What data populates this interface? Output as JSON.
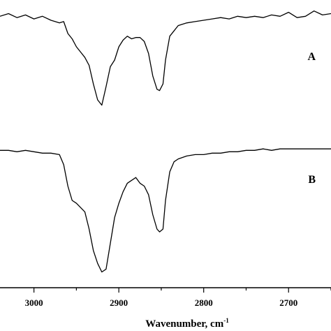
{
  "chart_data": {
    "type": "line",
    "xlabel": "Wavenumber, cm",
    "xlabel_superscript": "-1",
    "xlim": [
      3040,
      2650
    ],
    "x_reversed": true,
    "x_ticks": [
      3000,
      2900,
      2800,
      2700
    ],
    "y_axis_visible": false,
    "grid": false,
    "series": [
      {
        "name": "A",
        "x": [
          3040,
          3030,
          3020,
          3010,
          3000,
          2990,
          2980,
          2970,
          2965,
          2960,
          2955,
          2950,
          2945,
          2940,
          2935,
          2930,
          2925,
          2920,
          2915,
          2910,
          2905,
          2900,
          2895,
          2890,
          2885,
          2880,
          2875,
          2870,
          2865,
          2860,
          2855,
          2852,
          2848,
          2845,
          2840,
          2835,
          2830,
          2820,
          2810,
          2800,
          2790,
          2780,
          2770,
          2760,
          2750,
          2740,
          2730,
          2720,
          2710,
          2700,
          2690,
          2680,
          2670,
          2660,
          2650
        ],
        "values": [
          0.93,
          0.95,
          0.92,
          0.94,
          0.91,
          0.93,
          0.9,
          0.88,
          0.89,
          0.8,
          0.76,
          0.7,
          0.66,
          0.62,
          0.56,
          0.42,
          0.3,
          0.26,
          0.4,
          0.55,
          0.6,
          0.7,
          0.75,
          0.78,
          0.76,
          0.77,
          0.77,
          0.74,
          0.65,
          0.48,
          0.38,
          0.37,
          0.42,
          0.6,
          0.78,
          0.82,
          0.86,
          0.88,
          0.89,
          0.9,
          0.91,
          0.92,
          0.91,
          0.93,
          0.92,
          0.93,
          0.92,
          0.94,
          0.93,
          0.96,
          0.92,
          0.93,
          0.97,
          0.94,
          0.95
        ]
      },
      {
        "name": "B",
        "x": [
          3040,
          3030,
          3020,
          3010,
          3000,
          2990,
          2980,
          2970,
          2965,
          2960,
          2955,
          2950,
          2945,
          2940,
          2935,
          2930,
          2925,
          2920,
          2915,
          2910,
          2905,
          2900,
          2895,
          2890,
          2885,
          2880,
          2875,
          2870,
          2865,
          2860,
          2855,
          2852,
          2848,
          2845,
          2840,
          2835,
          2830,
          2820,
          2810,
          2800,
          2790,
          2780,
          2770,
          2760,
          2750,
          2740,
          2730,
          2720,
          2710,
          2700,
          2690,
          2680,
          2670,
          2660,
          2650
        ],
        "values": [
          0.95,
          0.95,
          0.94,
          0.95,
          0.94,
          0.93,
          0.93,
          0.92,
          0.85,
          0.7,
          0.6,
          0.58,
          0.55,
          0.52,
          0.4,
          0.25,
          0.16,
          0.1,
          0.12,
          0.3,
          0.48,
          0.58,
          0.66,
          0.72,
          0.74,
          0.76,
          0.72,
          0.7,
          0.64,
          0.5,
          0.4,
          0.38,
          0.4,
          0.6,
          0.8,
          0.87,
          0.89,
          0.91,
          0.92,
          0.92,
          0.93,
          0.93,
          0.94,
          0.94,
          0.95,
          0.95,
          0.96,
          0.95,
          0.96,
          0.96,
          0.96,
          0.96,
          0.96,
          0.96,
          0.96
        ]
      }
    ]
  }
}
